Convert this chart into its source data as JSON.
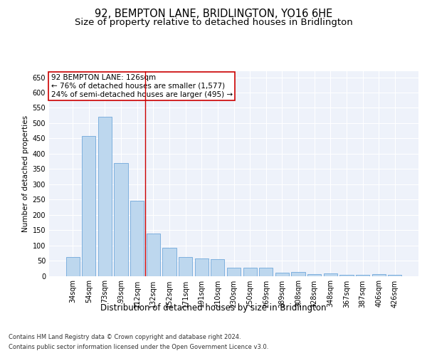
{
  "title1": "92, BEMPTON LANE, BRIDLINGTON, YO16 6HE",
  "title2": "Size of property relative to detached houses in Bridlington",
  "xlabel": "Distribution of detached houses by size in Bridlington",
  "ylabel": "Number of detached properties",
  "footer1": "Contains HM Land Registry data © Crown copyright and database right 2024.",
  "footer2": "Contains public sector information licensed under the Open Government Licence v3.0.",
  "annotation_line1": "92 BEMPTON LANE: 126sqm",
  "annotation_line2": "← 76% of detached houses are smaller (1,577)",
  "annotation_line3": "24% of semi-detached houses are larger (495) →",
  "bar_color": "#bdd7ee",
  "bar_edge_color": "#5b9bd5",
  "vline_color": "#cc0000",
  "vline_x": 4.5,
  "categories": [
    "34sqm",
    "54sqm",
    "73sqm",
    "93sqm",
    "112sqm",
    "132sqm",
    "152sqm",
    "171sqm",
    "191sqm",
    "210sqm",
    "230sqm",
    "250sqm",
    "269sqm",
    "289sqm",
    "308sqm",
    "328sqm",
    "348sqm",
    "367sqm",
    "387sqm",
    "406sqm",
    "426sqm"
  ],
  "values": [
    62,
    458,
    520,
    370,
    247,
    138,
    92,
    62,
    57,
    55,
    26,
    27,
    27,
    10,
    12,
    5,
    8,
    4,
    3,
    5,
    3
  ],
  "ylim": [
    0,
    670
  ],
  "yticks": [
    0,
    50,
    100,
    150,
    200,
    250,
    300,
    350,
    400,
    450,
    500,
    550,
    600,
    650
  ],
  "plot_bg_color": "#eef2fa",
  "grid_color": "#ffffff",
  "title1_fontsize": 10.5,
  "title2_fontsize": 9.5,
  "xlabel_fontsize": 8.5,
  "ylabel_fontsize": 7.5,
  "tick_fontsize": 7,
  "annot_fontsize": 7.5,
  "footer_fontsize": 6
}
